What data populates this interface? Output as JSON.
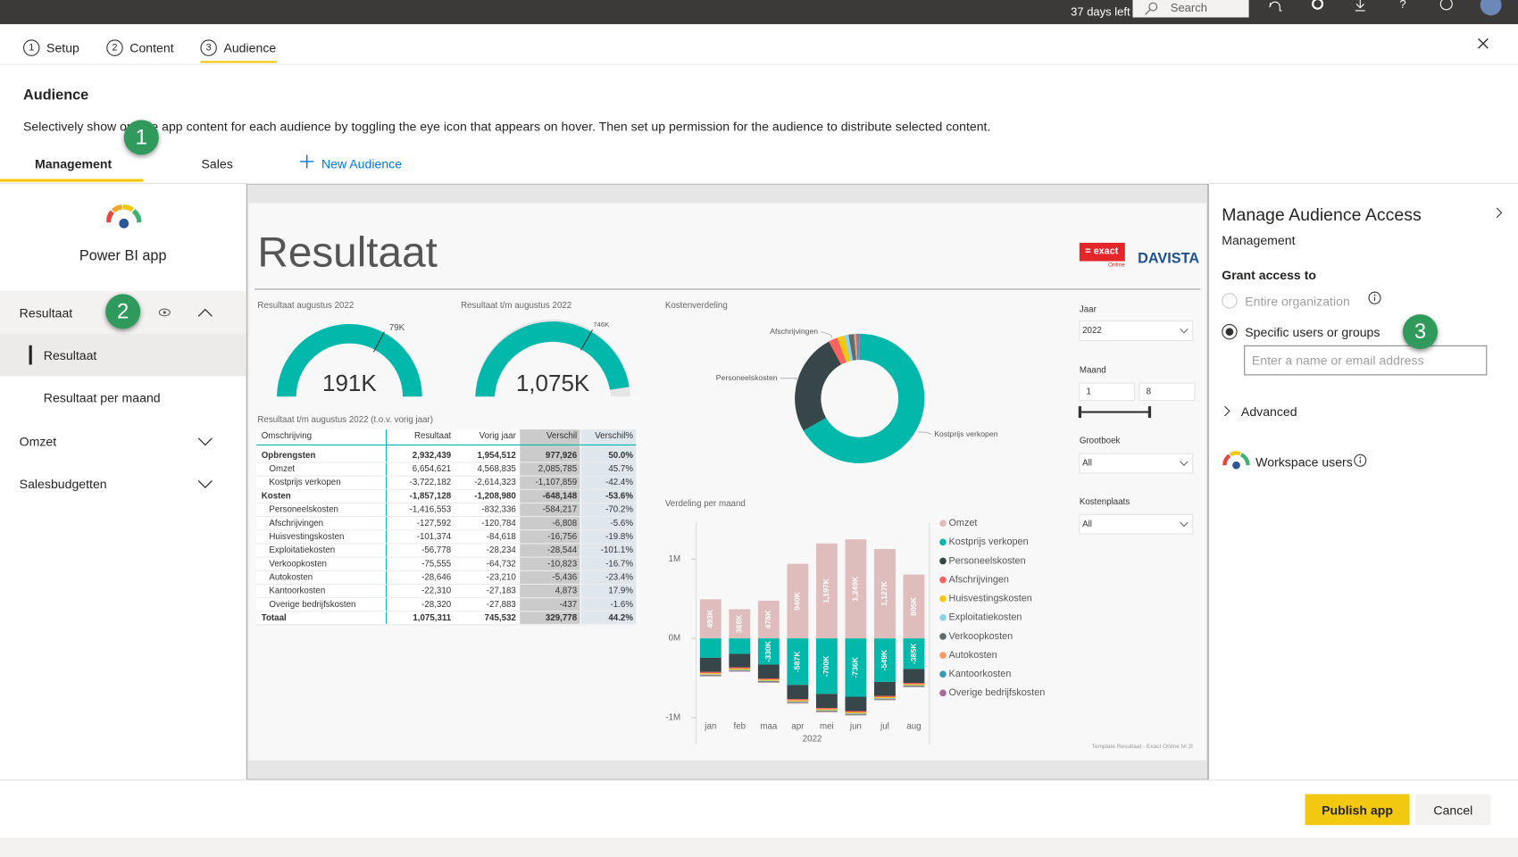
{
  "topbar": {
    "trial": "37 days left",
    "search": "Search"
  },
  "steps": [
    {
      "number": "1",
      "label": "Setup"
    },
    {
      "number": "2",
      "label": "Content"
    },
    {
      "number": "3",
      "label": "Audience"
    }
  ],
  "header": {
    "title": "Audience",
    "description": "Selectively show or hide app content for each audience by toggling the eye icon that appears on hover. Then set up permission for the audience to distribute selected content."
  },
  "callouts": [
    "1",
    "2",
    "3"
  ],
  "audience_tabs": [
    "Management",
    "Sales"
  ],
  "new_audience": "New Audience",
  "nav": {
    "app_name": "Power BI app",
    "sections": [
      {
        "label": "Resultaat",
        "items": [
          "Resultaat",
          "Resultaat per maand"
        ]
      },
      {
        "label": "Omzet"
      },
      {
        "label": "Salesbudgetten"
      }
    ]
  },
  "report": {
    "title": "Resultaat",
    "logos": {
      "exact": "= exact",
      "exact_sub": "Online",
      "davista": "DAVISTA"
    },
    "gauges": [
      {
        "title": "Resultaat augustus 2022",
        "value": "191K",
        "target": "79K"
      },
      {
        "title": "Resultaat t/m augustus 2022",
        "value": "1,075K",
        "target": "746K"
      }
    ],
    "table": {
      "title": "Resultaat t/m augustus 2022 (t.o.v. vorig jaar)",
      "columns": [
        "Omschrijving",
        "Resultaat",
        "Vorig jaar",
        "Verschil",
        "Verschil%"
      ],
      "rows": [
        {
          "bold": true,
          "cells": [
            "Opbrengsten",
            "2,932,439",
            "1,954,512",
            "977,926",
            "50.0%"
          ]
        },
        {
          "bold": false,
          "cells": [
            "Omzet",
            "6,654,621",
            "4,568,835",
            "2,085,785",
            "45.7%"
          ]
        },
        {
          "bold": false,
          "cells": [
            "Kostprijs verkopen",
            "-3,722,182",
            "-2,614,323",
            "-1,107,859",
            "-42.4%"
          ]
        },
        {
          "bold": true,
          "cells": [
            "Kosten",
            "-1,857,128",
            "-1,208,980",
            "-648,148",
            "-53.6%"
          ]
        },
        {
          "bold": false,
          "cells": [
            "Personeelskosten",
            "-1,416,553",
            "-832,336",
            "-584,217",
            "-70.2%"
          ]
        },
        {
          "bold": false,
          "cells": [
            "Afschrijvingen",
            "-127,592",
            "-120,784",
            "-6,808",
            "-5.6%"
          ]
        },
        {
          "bold": false,
          "cells": [
            "Huisvestingskosten",
            "-101,374",
            "-84,618",
            "-16,756",
            "-19.8%"
          ]
        },
        {
          "bold": false,
          "cells": [
            "Exploitatiekosten",
            "-56,778",
            "-28,234",
            "-28,544",
            "-101.1%"
          ]
        },
        {
          "bold": false,
          "cells": [
            "Verkoopkosten",
            "-75,555",
            "-64,732",
            "-10,823",
            "-16.7%"
          ]
        },
        {
          "bold": false,
          "cells": [
            "Autokosten",
            "-28,646",
            "-23,210",
            "-5,436",
            "-23.4%"
          ]
        },
        {
          "bold": false,
          "cells": [
            "Kantoorkosten",
            "-22,310",
            "-27,183",
            "4,873",
            "17.9%"
          ]
        },
        {
          "bold": false,
          "cells": [
            "Overige bedrijfskosten",
            "-28,320",
            "-27,883",
            "-437",
            "-1.6%"
          ]
        },
        {
          "bold": true,
          "cells": [
            "Totaal",
            "1,075,311",
            "745,532",
            "329,778",
            "44.2%"
          ]
        }
      ]
    },
    "kostenverdeling": {
      "type": "pie",
      "title": "Kostenverdeling",
      "categories": [
        "Kostprijs verkopen",
        "Personeelskosten",
        "Afschrijvingen",
        null,
        null,
        null,
        null,
        null,
        null
      ],
      "values": [
        3722182,
        1416553,
        127592,
        101374,
        56778,
        75555,
        28646,
        22310,
        28320
      ],
      "colors": [
        "#01b8aa",
        "#374649",
        "#fd625e",
        "#f2c80f",
        "#8ad4eb",
        "#5f6b6d",
        "#fe9666",
        "#3599b8",
        "#a66999"
      ]
    },
    "verdeling": {
      "type": "bar",
      "title": "Verdeling per maand",
      "x_label": "2022",
      "stacked": true,
      "categories": [
        "jan",
        "feb",
        "maa",
        "apr",
        "mei",
        "jun",
        "jul",
        "aug"
      ],
      "ylim": [
        -1300000,
        1500000
      ],
      "yticks": [
        {
          "value": 1000000,
          "label": "1M"
        },
        {
          "value": 0,
          "label": "0M"
        },
        {
          "value": -1000000,
          "label": "-1M"
        }
      ],
      "series": [
        {
          "name": "Omzet",
          "color": "#dfbdbd",
          "values": [
            493000,
            368000,
            476000,
            940000,
            1197000,
            1249000,
            1127000,
            805000
          ],
          "value_labels": [
            "493K",
            "368K",
            "476K",
            "940K",
            "1,197K",
            "1,249K",
            "1,127K",
            "805K"
          ]
        },
        {
          "name": "Kostprijs verkopen",
          "color": "#01b8aa",
          "values": [
            -244000,
            -195000,
            -330000,
            -587000,
            -700000,
            -736000,
            -549000,
            -385000
          ],
          "value_labels": [
            null,
            null,
            "-330K",
            "-587K",
            "-700K",
            "-736K",
            "-549K",
            "-385K"
          ]
        },
        {
          "name": "Personeelskosten",
          "color": "#374649",
          "values": [
            -180000,
            -170000,
            -175000,
            -180000,
            -178000,
            -180000,
            -176000,
            -177000
          ]
        },
        {
          "name": "Afschrijvingen",
          "color": "#fd625e",
          "values": [
            -16000,
            -16000,
            -16000,
            -16000,
            -16000,
            -16000,
            -16000,
            -16000
          ]
        },
        {
          "name": "Huisvestingskosten",
          "color": "#f2c80f",
          "values": [
            -12700,
            -12700,
            -12700,
            -12700,
            -12700,
            -12700,
            -12700,
            -12700
          ]
        },
        {
          "name": "Exploitatiekosten",
          "color": "#8ad4eb",
          "values": [
            -7000,
            -7000,
            -7000,
            -7000,
            -7000,
            -7000,
            -7000,
            -7000
          ]
        },
        {
          "name": "Verkoopkosten",
          "color": "#5f6b6d",
          "values": [
            -9400,
            -9400,
            -9400,
            -9400,
            -9400,
            -9400,
            -9400,
            -9400
          ]
        },
        {
          "name": "Autokosten",
          "color": "#fe9666",
          "values": [
            -3600,
            -3600,
            -3600,
            -3600,
            -3600,
            -3600,
            -3600,
            -3600
          ]
        },
        {
          "name": "Kantoorkosten",
          "color": "#3599b8",
          "values": [
            -2800,
            -2800,
            -2800,
            -2800,
            -2800,
            -2800,
            -2800,
            -2800
          ]
        },
        {
          "name": "Overige bedrijfskosten",
          "color": "#a66999",
          "values": [
            -3500,
            -3500,
            -3500,
            -3500,
            -3500,
            -3500,
            -3500,
            -3500
          ]
        }
      ]
    },
    "slicers": {
      "year_label": "Jaar",
      "year": "2022",
      "month_label": "Maand",
      "month_from": "1",
      "month_to": "8",
      "ledger_label": "Grootboek",
      "ledger": "All",
      "cost_center_label": "Kostenplaats",
      "cost_center": "All"
    },
    "footnote": "Template Resultaat - Exact Online lvl 2l"
  },
  "panel": {
    "title": "Manage Audience Access",
    "audience": "Management",
    "grant_label": "Grant access to",
    "options": [
      "Entire organization",
      "Specific users or groups"
    ],
    "selected": 1,
    "placeholder": "Enter a name or email address",
    "advanced": "Advanced",
    "workspace_users": "Workspace users"
  },
  "footer": {
    "publish": "Publish app",
    "cancel": "Cancel"
  }
}
